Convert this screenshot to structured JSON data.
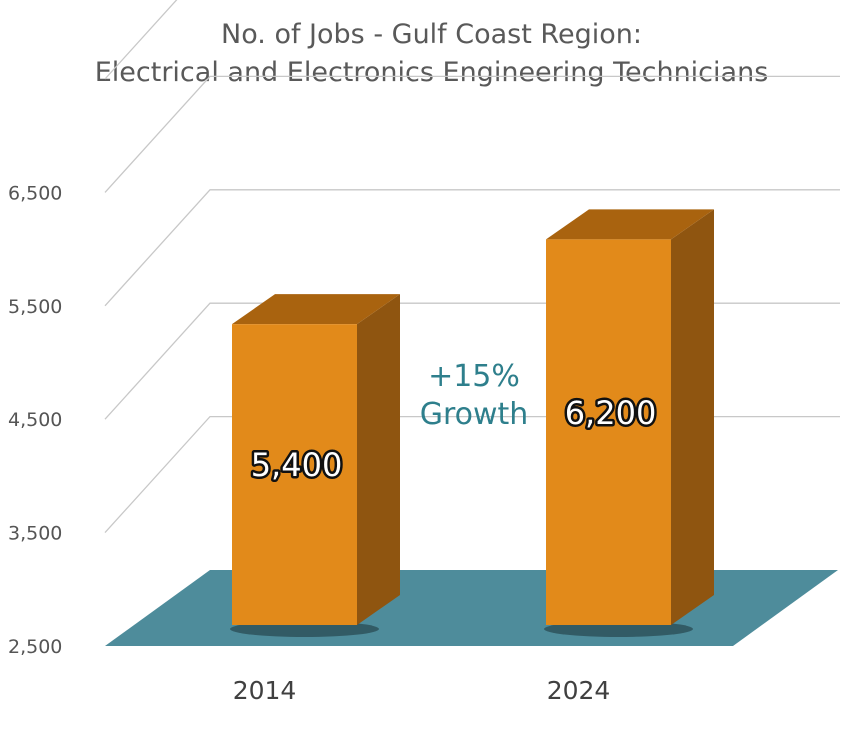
{
  "chart_data": {
    "type": "bar",
    "title": "No. of Jobs - Gulf Coast Region:",
    "subtitle": "Electrical and Electronics Engineering Technicians",
    "categories": [
      "2014",
      "2024"
    ],
    "values": [
      5400,
      6200
    ],
    "data_labels": [
      "5,400",
      "6,200"
    ],
    "yticks": [
      2500,
      3500,
      4500,
      5500,
      6500
    ],
    "ytick_labels": [
      "2,500",
      "3,500",
      "4,500",
      "5,500",
      "6,500"
    ],
    "ylim": [
      2500,
      7500
    ],
    "xlabel": "",
    "ylabel": "",
    "grid": true,
    "legend": "none",
    "style": "3d-column",
    "annotation": {
      "line1": "+15%",
      "line2": "Growth"
    },
    "colors": {
      "bar_front": "#e28a1a",
      "bar_top": "#a9630f",
      "bar_side": "#8f5510",
      "floor": "#4e8c9b",
      "annotation": "#2e7f8c",
      "grid": "#c8c8c8"
    }
  }
}
